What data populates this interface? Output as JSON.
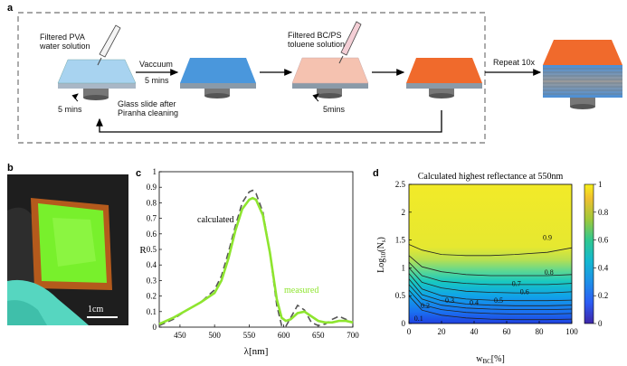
{
  "panel_a": {
    "label": "a",
    "filtered_pva": [
      "Filtered PVA",
      "water solution"
    ],
    "vaccuum": [
      "Vaccuum",
      "5 mins"
    ],
    "filtered_bcps": [
      "Filtered BC/PS",
      "toluene solution"
    ],
    "repeat": "Repeat 10x",
    "spin_left": "5 mins",
    "spin_right": "5mins",
    "glass_slide": [
      "Glass slide after",
      "Piranha cleaning"
    ]
  },
  "panel_b": {
    "label": "b",
    "scale": "1cm"
  },
  "panel_c": {
    "label": "c",
    "chart_data": {
      "type": "line",
      "xlabel": "λ[nm]",
      "ylabel": "R",
      "xlim": [
        420,
        700
      ],
      "ylim": [
        0,
        1
      ],
      "xticks": [
        "450",
        "500",
        "550",
        "600",
        "650",
        "700"
      ],
      "yticks": [
        "0",
        "0.1",
        "0.2",
        "0.3",
        "0.4",
        "0.5",
        "0.6",
        "0.7",
        "0.8",
        "0.9",
        "1"
      ],
      "annotations": [
        "calculated",
        "measured"
      ],
      "series": [
        {
          "name": "calculated",
          "color": "#555555",
          "style": "dashed",
          "x": [
            420,
            440,
            460,
            480,
            500,
            510,
            520,
            530,
            540,
            550,
            555,
            560,
            570,
            580,
            590,
            597,
            603,
            610,
            620,
            630,
            640,
            650,
            660,
            670,
            680,
            690,
            700
          ],
          "y": [
            0.01,
            0.05,
            0.11,
            0.16,
            0.24,
            0.33,
            0.48,
            0.65,
            0.8,
            0.87,
            0.88,
            0.86,
            0.74,
            0.48,
            0.14,
            0.01,
            0.005,
            0.06,
            0.14,
            0.11,
            0.03,
            0.01,
            0.02,
            0.05,
            0.07,
            0.05,
            0.03
          ]
        },
        {
          "name": "measured",
          "color": "#8ee52f",
          "style": "solid",
          "x": [
            420,
            440,
            460,
            480,
            500,
            510,
            520,
            530,
            540,
            550,
            555,
            560,
            570,
            580,
            590,
            597,
            603,
            610,
            620,
            630,
            640,
            650,
            660,
            670,
            680,
            690,
            700
          ],
          "y": [
            0.02,
            0.06,
            0.11,
            0.16,
            0.22,
            0.3,
            0.44,
            0.62,
            0.76,
            0.82,
            0.83,
            0.82,
            0.72,
            0.48,
            0.18,
            0.06,
            0.04,
            0.05,
            0.09,
            0.1,
            0.07,
            0.04,
            0.03,
            0.03,
            0.04,
            0.04,
            0.03
          ]
        }
      ]
    }
  },
  "panel_d": {
    "label": "d",
    "chart_data": {
      "type": "heatmap",
      "title": "Calculated highest reflectance at 550nm",
      "xlabel": "w_BC[%]",
      "xlabel_main": "w",
      "xlabel_sub": "BC",
      "xlabel_unit": "[%]",
      "ylabel": "Log10(Ns)",
      "xlim": [
        0,
        100
      ],
      "ylim": [
        0,
        2.5
      ],
      "xticks": [
        "0",
        "20",
        "40",
        "60",
        "80",
        "100"
      ],
      "yticks": [
        "0",
        "0.5",
        "1",
        "1.5",
        "2",
        "2.5"
      ],
      "colorbar_ticks": [
        "0",
        "0.2",
        "0.4",
        "0.6",
        "0.8",
        "1"
      ],
      "contours": [
        {
          "level": "0.9",
          "label_at": [
            85,
            1.5
          ],
          "y": [
            1.42,
            1.32,
            1.24,
            1.22,
            1.22,
            1.24,
            1.28,
            1.36
          ]
        },
        {
          "level": "0.8",
          "label_at": [
            86,
            0.88
          ],
          "y": [
            1.22,
            1.02,
            0.93,
            0.88,
            0.86,
            0.86,
            0.86,
            0.88
          ]
        },
        {
          "level": "0.7",
          "label_at": [
            66,
            0.67
          ],
          "y": [
            1.1,
            0.86,
            0.76,
            0.72,
            0.7,
            0.7,
            0.7,
            0.72
          ]
        },
        {
          "level": "0.6",
          "label_at": [
            71,
            0.53
          ],
          "y": [
            1.0,
            0.74,
            0.64,
            0.58,
            0.56,
            0.55,
            0.55,
            0.57
          ]
        },
        {
          "level": "0.5",
          "label_at": [
            55,
            0.37
          ],
          "y": [
            0.9,
            0.62,
            0.5,
            0.44,
            0.42,
            0.41,
            0.41,
            0.42
          ]
        },
        {
          "level": "0.4",
          "label_at": [
            40,
            0.33
          ],
          "y": [
            0.8,
            0.52,
            0.41,
            0.35,
            0.33,
            0.32,
            0.32,
            0.33
          ]
        },
        {
          "level": "0.3",
          "label_at": [
            25,
            0.37
          ],
          "y": [
            0.7,
            0.44,
            0.33,
            0.28,
            0.26,
            0.25,
            0.25,
            0.26
          ]
        },
        {
          "level": "0.2",
          "label_at": [
            10,
            0.28
          ],
          "y": [
            0.6,
            0.34,
            0.25,
            0.2,
            0.18,
            0.17,
            0.17,
            0.18
          ]
        },
        {
          "level": "0.1",
          "label_at": [
            6,
            0.05
          ],
          "y": [
            0.5,
            0.24,
            0.15,
            0.1,
            0.08,
            0.07,
            0.07,
            0.08
          ]
        }
      ],
      "contour_x": [
        0,
        8,
        20,
        35,
        50,
        65,
        85,
        100
      ]
    }
  }
}
